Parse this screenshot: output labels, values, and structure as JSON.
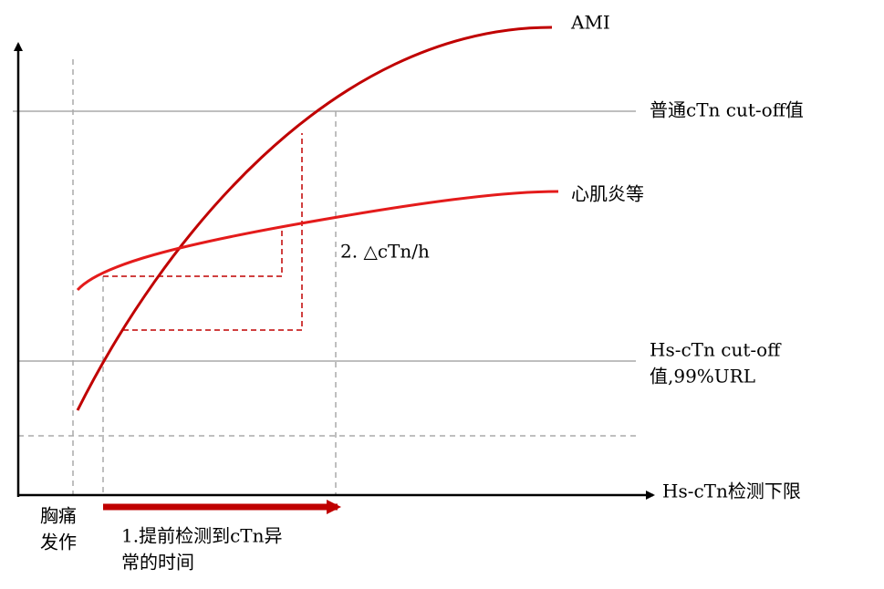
{
  "curves": {
    "ami": "AMI",
    "myocarditis": "心肌炎等"
  },
  "thresholds": {
    "conventional": "普通cTn cut-off值",
    "hs_line1": "Hs-cTn cut-off",
    "hs_line2": "值,99%URL"
  },
  "x_axis_label": "Hs-cTn检测下限",
  "delta_label": "2. △cTn/h",
  "onset": {
    "line1": "胸痛",
    "line2": "发作"
  },
  "early_detection": {
    "line1": "1.提前检测到cTn异",
    "line2": "常的时间"
  }
}
